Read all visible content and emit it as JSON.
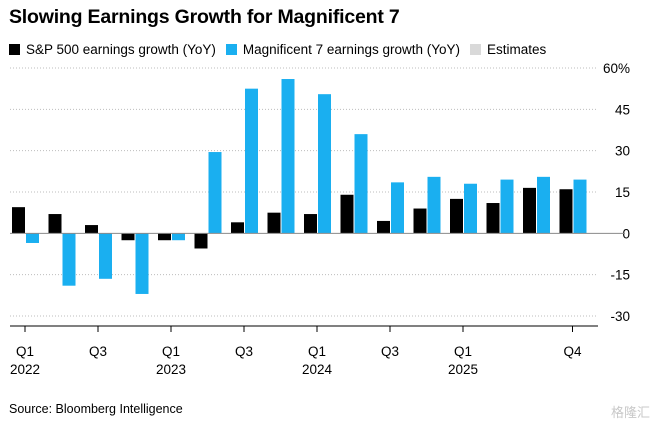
{
  "chart_data": {
    "type": "bar",
    "title": "Slowing Earnings Growth for Magnificent 7",
    "legend": [
      {
        "label": "S&P 500 earnings growth (YoY)",
        "color": "#000000"
      },
      {
        "label": "Magnificent 7 earnings growth (YoY)",
        "color": "#1aaff0"
      },
      {
        "label": "Estimates",
        "color": "#d9d9d9"
      }
    ],
    "categories": [
      "Q1 2022",
      "Q2 2022",
      "Q3 2022",
      "Q4 2022",
      "Q1 2023",
      "Q2 2023",
      "Q3 2023",
      "Q4 2023",
      "Q1 2024",
      "Q2 2024",
      "Q3 2024",
      "Q4 2024",
      "Q1 2025",
      "Q2 2025",
      "Q3 2025",
      "Q4 2025"
    ],
    "series": [
      {
        "name": "S&P 500 earnings growth (YoY)",
        "color": "#000000",
        "values": [
          9.5,
          7,
          3,
          -2.5,
          -2.5,
          -5.5,
          4,
          7.5,
          7,
          14,
          4.5,
          9,
          12.5,
          11,
          16.5,
          16
        ]
      },
      {
        "name": "Magnificent 7 earnings growth (YoY)",
        "color": "#1aaff0",
        "values": [
          -3.5,
          -19,
          -16.5,
          -22,
          -2.5,
          29.5,
          52.5,
          56,
          50.5,
          36,
          18.5,
          20.5,
          18,
          19.5,
          20.5,
          19.5
        ]
      }
    ],
    "x_tick_labels": [
      {
        "index": 0,
        "quarter": "Q1",
        "year": "2022"
      },
      {
        "index": 2,
        "quarter": "Q3",
        "year": ""
      },
      {
        "index": 4,
        "quarter": "Q1",
        "year": "2023"
      },
      {
        "index": 6,
        "quarter": "Q3",
        "year": ""
      },
      {
        "index": 8,
        "quarter": "Q1",
        "year": "2024"
      },
      {
        "index": 10,
        "quarter": "Q3",
        "year": ""
      },
      {
        "index": 12,
        "quarter": "Q1",
        "year": "2025"
      },
      {
        "index": 15,
        "quarter": "Q4",
        "year": ""
      }
    ],
    "y_ticks": [
      60,
      45,
      30,
      15,
      0,
      -15,
      -30
    ],
    "y_tick_labels": [
      "60%",
      "45",
      "30",
      "15",
      "0",
      "-15",
      "-30"
    ],
    "ylim": [
      -30,
      60
    ],
    "grid": "horizontal dotted",
    "legend_position": "top"
  },
  "source": "Source: Bloomberg Intelligence",
  "watermark": "格隆汇"
}
